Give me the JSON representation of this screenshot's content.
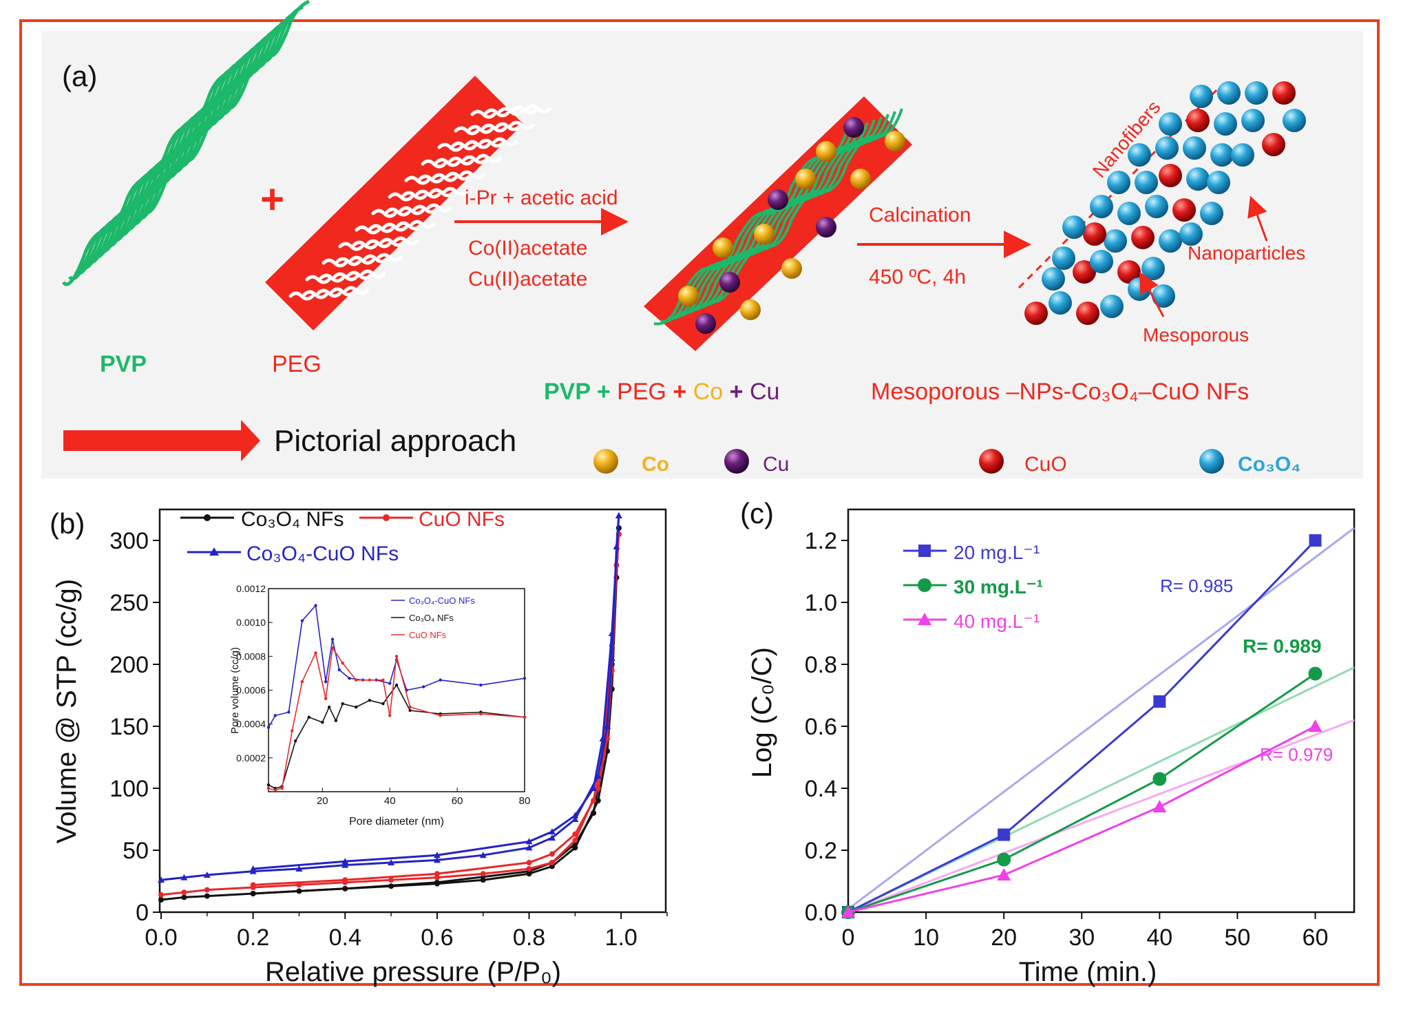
{
  "colors": {
    "frame": "#e8401c",
    "green": "#1db86a",
    "red": "#f0281e",
    "yellow": "#f2b21c",
    "purple": "#6a1f7a",
    "blue": "#2aa6d8",
    "black": "#111111",
    "s20": "#3a3ad0",
    "s30": "#139a48",
    "s40": "#f040e8",
    "co3o4": "#111111",
    "cuo": "#e8282a",
    "mix": "#2323c8"
  },
  "panel_a": {
    "label": "(a)",
    "pvp": "PVP",
    "plus": "+",
    "peg": "PEG",
    "arrow1_top": "i-Pr + acetic acid",
    "arrow1_bottom1": "Co(II)acetate",
    "arrow1_bottom2": "Cu(II)acetate",
    "mix_label": {
      "pvp": "PVP",
      "p1": " + ",
      "peg": "PEG",
      "p2": " + ",
      "co": "Co",
      "p3": " + ",
      "cu": "Cu"
    },
    "arrow2_top": "Calcination",
    "arrow2_bottom": "450 ºC, 4h",
    "nanofibers": "Nanofibers",
    "nanoparticles": "Nanoparticles",
    "mesoporous": "Mesoporous",
    "product": "Mesoporous –NPs-Co₃O₄–CuO NFs",
    "pictorial": "Pictorial approach",
    "legend": {
      "co": "Co",
      "cu": "Cu",
      "cuo": "CuO",
      "co3o4": "Co₃O₄"
    }
  },
  "chart_data": [
    {
      "panel": "(b)",
      "type": "line",
      "xlabel": "Relative pressure (P/P₀)",
      "ylabel": "Volume @ STP (cc/g)",
      "xlim": [
        0,
        1.1
      ],
      "ylim": [
        0,
        325
      ],
      "xticks": [
        "0.0",
        "0.2",
        "0.4",
        "0.6",
        "0.8",
        "1.0"
      ],
      "yticks": [
        "0",
        "50",
        "100",
        "150",
        "200",
        "250",
        "300"
      ],
      "legend": [
        "Co₃O₄ NFs",
        "CuO NFs",
        "Co₃O₄-CuO NFs"
      ],
      "series": [
        {
          "name": "Co₃O₄ NFs",
          "adsorption": [
            [
              0,
              10
            ],
            [
              0.05,
              12
            ],
            [
              0.1,
              13
            ],
            [
              0.2,
              15
            ],
            [
              0.3,
              17
            ],
            [
              0.4,
              19
            ],
            [
              0.5,
              21
            ],
            [
              0.6,
              23
            ],
            [
              0.7,
              26
            ],
            [
              0.8,
              31
            ],
            [
              0.85,
              37
            ],
            [
              0.9,
              52
            ],
            [
              0.95,
              90
            ],
            [
              0.97,
              130
            ],
            [
              0.98,
              180
            ],
            [
              0.99,
              270
            ],
            [
              0.995,
              310
            ]
          ],
          "desorption": [
            [
              0.995,
              310
            ],
            [
              0.98,
              200
            ],
            [
              0.96,
              120
            ],
            [
              0.94,
              80
            ],
            [
              0.9,
              55
            ],
            [
              0.85,
              40
            ],
            [
              0.8,
              33
            ],
            [
              0.6,
              24
            ],
            [
              0.4,
              19
            ],
            [
              0.2,
              15
            ]
          ]
        },
        {
          "name": "CuO NFs",
          "adsorption": [
            [
              0,
              14
            ],
            [
              0.05,
              16
            ],
            [
              0.1,
              18
            ],
            [
              0.2,
              20
            ],
            [
              0.3,
              22
            ],
            [
              0.4,
              24
            ],
            [
              0.5,
              26
            ],
            [
              0.6,
              28
            ],
            [
              0.7,
              31
            ],
            [
              0.8,
              35
            ],
            [
              0.85,
              40
            ],
            [
              0.9,
              58
            ],
            [
              0.95,
              100
            ],
            [
              0.97,
              140
            ],
            [
              0.98,
              195
            ],
            [
              0.99,
              280
            ],
            [
              0.995,
              305
            ]
          ],
          "desorption": [
            [
              0.995,
              305
            ],
            [
              0.98,
              215
            ],
            [
              0.96,
              130
            ],
            [
              0.94,
              90
            ],
            [
              0.9,
              63
            ],
            [
              0.85,
              47
            ],
            [
              0.8,
              40
            ],
            [
              0.6,
              31
            ],
            [
              0.4,
              26
            ],
            [
              0.2,
              22
            ]
          ]
        },
        {
          "name": "Co₃O₄-CuO NFs",
          "adsorption": [
            [
              0,
              26
            ],
            [
              0.05,
              28
            ],
            [
              0.1,
              30
            ],
            [
              0.2,
              33
            ],
            [
              0.3,
              35
            ],
            [
              0.4,
              38
            ],
            [
              0.5,
              40
            ],
            [
              0.6,
              42
            ],
            [
              0.7,
              46
            ],
            [
              0.8,
              52
            ],
            [
              0.85,
              60
            ],
            [
              0.9,
              75
            ],
            [
              0.95,
              110
            ],
            [
              0.97,
              150
            ],
            [
              0.98,
              205
            ],
            [
              0.99,
              295
            ],
            [
              0.995,
              320
            ]
          ],
          "desorption": [
            [
              0.995,
              320
            ],
            [
              0.98,
              225
            ],
            [
              0.96,
              140
            ],
            [
              0.94,
              100
            ],
            [
              0.9,
              78
            ],
            [
              0.85,
              65
            ],
            [
              0.8,
              57
            ],
            [
              0.6,
              46
            ],
            [
              0.4,
              41
            ],
            [
              0.2,
              35
            ]
          ]
        }
      ],
      "inset": {
        "type": "line",
        "xlabel": "Pore diameter (nm)",
        "ylabel": "Pore volume (cc/g)",
        "xlim": [
          4,
          80
        ],
        "ylim": [
          0,
          0.0012
        ],
        "xticks": [
          "20",
          "40",
          "60",
          "80"
        ],
        "yticks": [
          "0.0002",
          "0.0004",
          "0.0006",
          "0.0008",
          "0.0010",
          "0.0012"
        ],
        "legend": [
          "Co₃O₄-CuO NFs",
          "Co₃O₄ NFs",
          "CuO NFs"
        ],
        "series": [
          {
            "name": "Co₃O₄-CuO NFs",
            "points": [
              [
                4,
                0.00038
              ],
              [
                6,
                0.00045
              ],
              [
                10,
                0.00047
              ],
              [
                14,
                0.00101
              ],
              [
                18,
                0.0011
              ],
              [
                21,
                0.00065
              ],
              [
                23,
                0.0009
              ],
              [
                25,
                0.00072
              ],
              [
                28,
                0.00067
              ],
              [
                32,
                0.00066
              ],
              [
                36,
                0.00066
              ],
              [
                40,
                0.00064
              ],
              [
                42,
                0.00078
              ],
              [
                45,
                0.0006
              ],
              [
                50,
                0.00062
              ],
              [
                55,
                0.00066
              ],
              [
                67,
                0.00063
              ],
              [
                80,
                0.00067
              ]
            ]
          },
          {
            "name": "Co₃O₄ NFs",
            "points": [
              [
                4,
                4e-05
              ],
              [
                6,
                2e-05
              ],
              [
                8,
                3e-05
              ],
              [
                12,
                0.0003
              ],
              [
                16,
                0.00044
              ],
              [
                20,
                0.00041
              ],
              [
                22,
                0.0005
              ],
              [
                24,
                0.00042
              ],
              [
                26,
                0.00052
              ],
              [
                30,
                0.0005
              ],
              [
                34,
                0.00054
              ],
              [
                38,
                0.00052
              ],
              [
                42,
                0.00063
              ],
              [
                46,
                0.00048
              ],
              [
                55,
                0.00046
              ],
              [
                67,
                0.00047
              ],
              [
                80,
                0.00044
              ]
            ]
          },
          {
            "name": "CuO NFs",
            "points": [
              [
                4,
                2e-05
              ],
              [
                6,
                1e-05
              ],
              [
                8,
                2e-05
              ],
              [
                11,
                0.00036
              ],
              [
                14,
                0.00065
              ],
              [
                18,
                0.00082
              ],
              [
                21,
                0.00055
              ],
              [
                23,
                0.00085
              ],
              [
                26,
                0.00076
              ],
              [
                30,
                0.00066
              ],
              [
                34,
                0.00066
              ],
              [
                38,
                0.00066
              ],
              [
                40,
                0.00045
              ],
              [
                42,
                0.0008
              ],
              [
                46,
                0.0005
              ],
              [
                55,
                0.00045
              ],
              [
                67,
                0.00046
              ],
              [
                80,
                0.00044
              ]
            ]
          }
        ]
      }
    },
    {
      "panel": "(c)",
      "type": "line",
      "xlabel": "Time (min.)",
      "ylabel": "Log (C₀/C)",
      "xlim": [
        0,
        65
      ],
      "ylim": [
        0,
        1.3
      ],
      "xticks": [
        "0",
        "10",
        "20",
        "30",
        "40",
        "50",
        "60"
      ],
      "yticks": [
        "0.0",
        "0.2",
        "0.4",
        "0.6",
        "0.8",
        "1.0",
        "1.2"
      ],
      "series": [
        {
          "name": "20 mg.L⁻¹",
          "x": [
            0,
            20,
            40,
            60
          ],
          "y": [
            0.0,
            0.25,
            0.68,
            1.2
          ],
          "marker": "square",
          "R": "R= 0.985",
          "fit": [
            0,
            0.01,
            65,
            1.24
          ]
        },
        {
          "name": "30 mg.L⁻¹",
          "x": [
            0,
            20,
            40,
            60
          ],
          "y": [
            0.0,
            0.17,
            0.43,
            0.77
          ],
          "marker": "circle",
          "R": "R= 0.989",
          "fit": [
            0,
            0.0,
            65,
            0.79
          ]
        },
        {
          "name": "40 mg.L⁻¹",
          "x": [
            0,
            20,
            40,
            60
          ],
          "y": [
            0.0,
            0.12,
            0.34,
            0.6
          ],
          "marker": "triangle",
          "R": "R= 0.979",
          "fit": [
            0,
            0.0,
            65,
            0.62
          ]
        }
      ]
    }
  ]
}
